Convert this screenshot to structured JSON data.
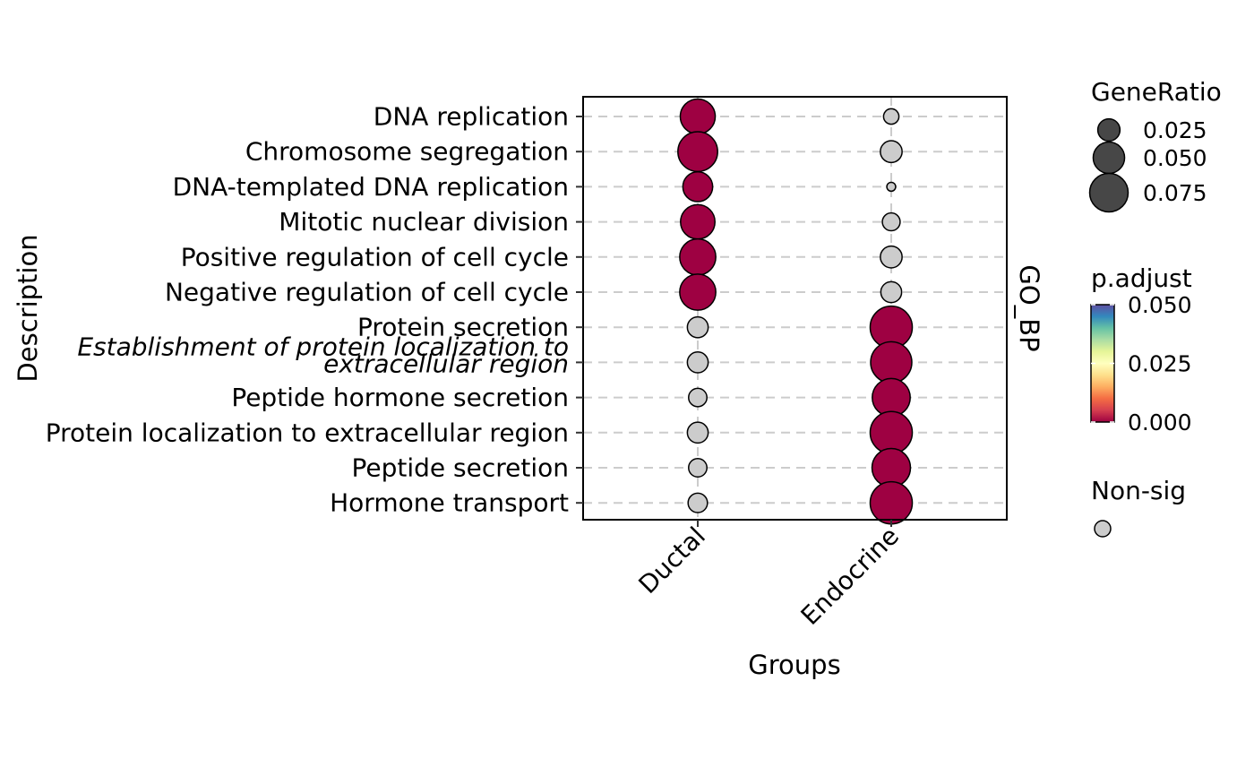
{
  "chart_data": {
    "type": "scatter",
    "xlabel": "Groups",
    "ylabel": "Description",
    "facet_label": "GO_BP",
    "groups": [
      "Ductal",
      "Endocrine"
    ],
    "terms": [
      {
        "label": [
          "DNA replication"
        ],
        "italic": false
      },
      {
        "label": [
          "Chromosome segregation"
        ],
        "italic": false
      },
      {
        "label": [
          "DNA-templated DNA replication"
        ],
        "italic": false
      },
      {
        "label": [
          "Mitotic nuclear division"
        ],
        "italic": false
      },
      {
        "label": [
          "Positive regulation of cell cycle"
        ],
        "italic": false
      },
      {
        "label": [
          "Negative regulation of cell cycle"
        ],
        "italic": false
      },
      {
        "label": [
          "Protein secretion"
        ],
        "italic": false
      },
      {
        "label": [
          "Establishment of protein localization to",
          "extracellular region"
        ],
        "italic": true
      },
      {
        "label": [
          "Peptide hormone secretion"
        ],
        "italic": false
      },
      {
        "label": [
          "Protein localization to extracellular region"
        ],
        "italic": false
      },
      {
        "label": [
          "Peptide secretion"
        ],
        "italic": false
      },
      {
        "label": [
          "Hormone transport"
        ],
        "italic": false
      }
    ],
    "points": [
      {
        "term": 0,
        "group": 0,
        "gene_ratio": 0.062,
        "p_adjust": 0.0,
        "significant": true
      },
      {
        "term": 0,
        "group": 1,
        "gene_ratio": 0.012,
        "p_adjust": null,
        "significant": false
      },
      {
        "term": 1,
        "group": 0,
        "gene_ratio": 0.08,
        "p_adjust": 0.0,
        "significant": true
      },
      {
        "term": 1,
        "group": 1,
        "gene_ratio": 0.024,
        "p_adjust": null,
        "significant": false
      },
      {
        "term": 2,
        "group": 0,
        "gene_ratio": 0.045,
        "p_adjust": 0.0,
        "significant": true
      },
      {
        "term": 2,
        "group": 1,
        "gene_ratio": 0.004,
        "p_adjust": null,
        "significant": false
      },
      {
        "term": 3,
        "group": 0,
        "gene_ratio": 0.06,
        "p_adjust": 0.0,
        "significant": true
      },
      {
        "term": 3,
        "group": 1,
        "gene_ratio": 0.016,
        "p_adjust": null,
        "significant": false
      },
      {
        "term": 4,
        "group": 0,
        "gene_ratio": 0.066,
        "p_adjust": 0.0,
        "significant": true
      },
      {
        "term": 4,
        "group": 1,
        "gene_ratio": 0.024,
        "p_adjust": null,
        "significant": false
      },
      {
        "term": 5,
        "group": 0,
        "gene_ratio": 0.066,
        "p_adjust": 0.0,
        "significant": true
      },
      {
        "term": 5,
        "group": 1,
        "gene_ratio": 0.022,
        "p_adjust": null,
        "significant": false
      },
      {
        "term": 6,
        "group": 0,
        "gene_ratio": 0.022,
        "p_adjust": null,
        "significant": false
      },
      {
        "term": 6,
        "group": 1,
        "gene_ratio": 0.09,
        "p_adjust": 0.0,
        "significant": true
      },
      {
        "term": 7,
        "group": 0,
        "gene_ratio": 0.022,
        "p_adjust": null,
        "significant": false
      },
      {
        "term": 7,
        "group": 1,
        "gene_ratio": 0.086,
        "p_adjust": 0.0,
        "significant": true
      },
      {
        "term": 8,
        "group": 0,
        "gene_ratio": 0.017,
        "p_adjust": null,
        "significant": false
      },
      {
        "term": 8,
        "group": 1,
        "gene_ratio": 0.073,
        "p_adjust": 0.0,
        "significant": true
      },
      {
        "term": 9,
        "group": 0,
        "gene_ratio": 0.022,
        "p_adjust": null,
        "significant": false
      },
      {
        "term": 9,
        "group": 1,
        "gene_ratio": 0.09,
        "p_adjust": 0.0,
        "significant": true
      },
      {
        "term": 10,
        "group": 0,
        "gene_ratio": 0.017,
        "p_adjust": null,
        "significant": false
      },
      {
        "term": 10,
        "group": 1,
        "gene_ratio": 0.075,
        "p_adjust": 0.0,
        "significant": true
      },
      {
        "term": 11,
        "group": 0,
        "gene_ratio": 0.019,
        "p_adjust": null,
        "significant": false
      },
      {
        "term": 11,
        "group": 1,
        "gene_ratio": 0.09,
        "p_adjust": 0.0,
        "significant": true
      }
    ],
    "size_legend": {
      "title": "GeneRatio",
      "breaks": [
        0.025,
        0.05,
        0.075
      ],
      "labels": [
        "0.025",
        "0.050",
        "0.075"
      ],
      "color": "#474747"
    },
    "color_legend": {
      "title": "p.adjust",
      "range": [
        0.0,
        0.05
      ],
      "labels": [
        "0.050",
        "0.025",
        "0.000"
      ],
      "palette": "Spectral",
      "stops": [
        "#9e0142",
        "#d53e4f",
        "#f46d43",
        "#fdae61",
        "#fee08b",
        "#ffffbf",
        "#e6f598",
        "#abdda4",
        "#66c2a5",
        "#3288bd",
        "#5e4fa2"
      ]
    },
    "nonsig_legend": {
      "title": "Non-sig",
      "color": "#cccccc"
    },
    "colors": {
      "significant": "#9e0142",
      "nonsig": "#cccccc",
      "outline": "#000000",
      "grid": "#cccccc"
    },
    "grid": true,
    "legend_position": "right"
  }
}
